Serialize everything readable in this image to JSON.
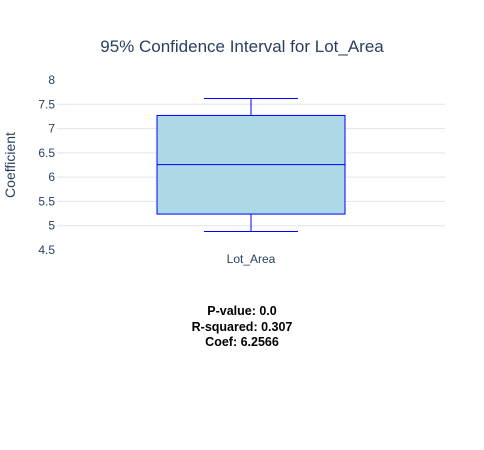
{
  "chart_data": {
    "type": "box",
    "title": "95% Confidence Interval for Lot_Area",
    "xlabel": "",
    "ylabel": "Coefficient",
    "categories": [
      "Lot_Area"
    ],
    "ylim": [
      4.5,
      8
    ],
    "yticks": [
      4.5,
      5,
      5.5,
      6,
      6.5,
      7,
      7.5,
      8
    ],
    "ytick_labels": [
      "4.5",
      "5",
      "5.5",
      "6",
      "6.5",
      "7",
      "7.5",
      "8"
    ],
    "grid": true,
    "box": {
      "whisker_low": 4.88,
      "q1": 5.24,
      "median": 6.2566,
      "q3": 7.27,
      "whisker_high": 7.62
    },
    "colors": {
      "fill": "#add8e6",
      "line": "#0000ff",
      "grid": "#e1e5ed",
      "text": "#2a3f5f"
    }
  },
  "stats": {
    "pvalue": "P-value: 0.0",
    "rsquared": "R-squared: 0.307",
    "coef": "Coef: 6.2566"
  }
}
